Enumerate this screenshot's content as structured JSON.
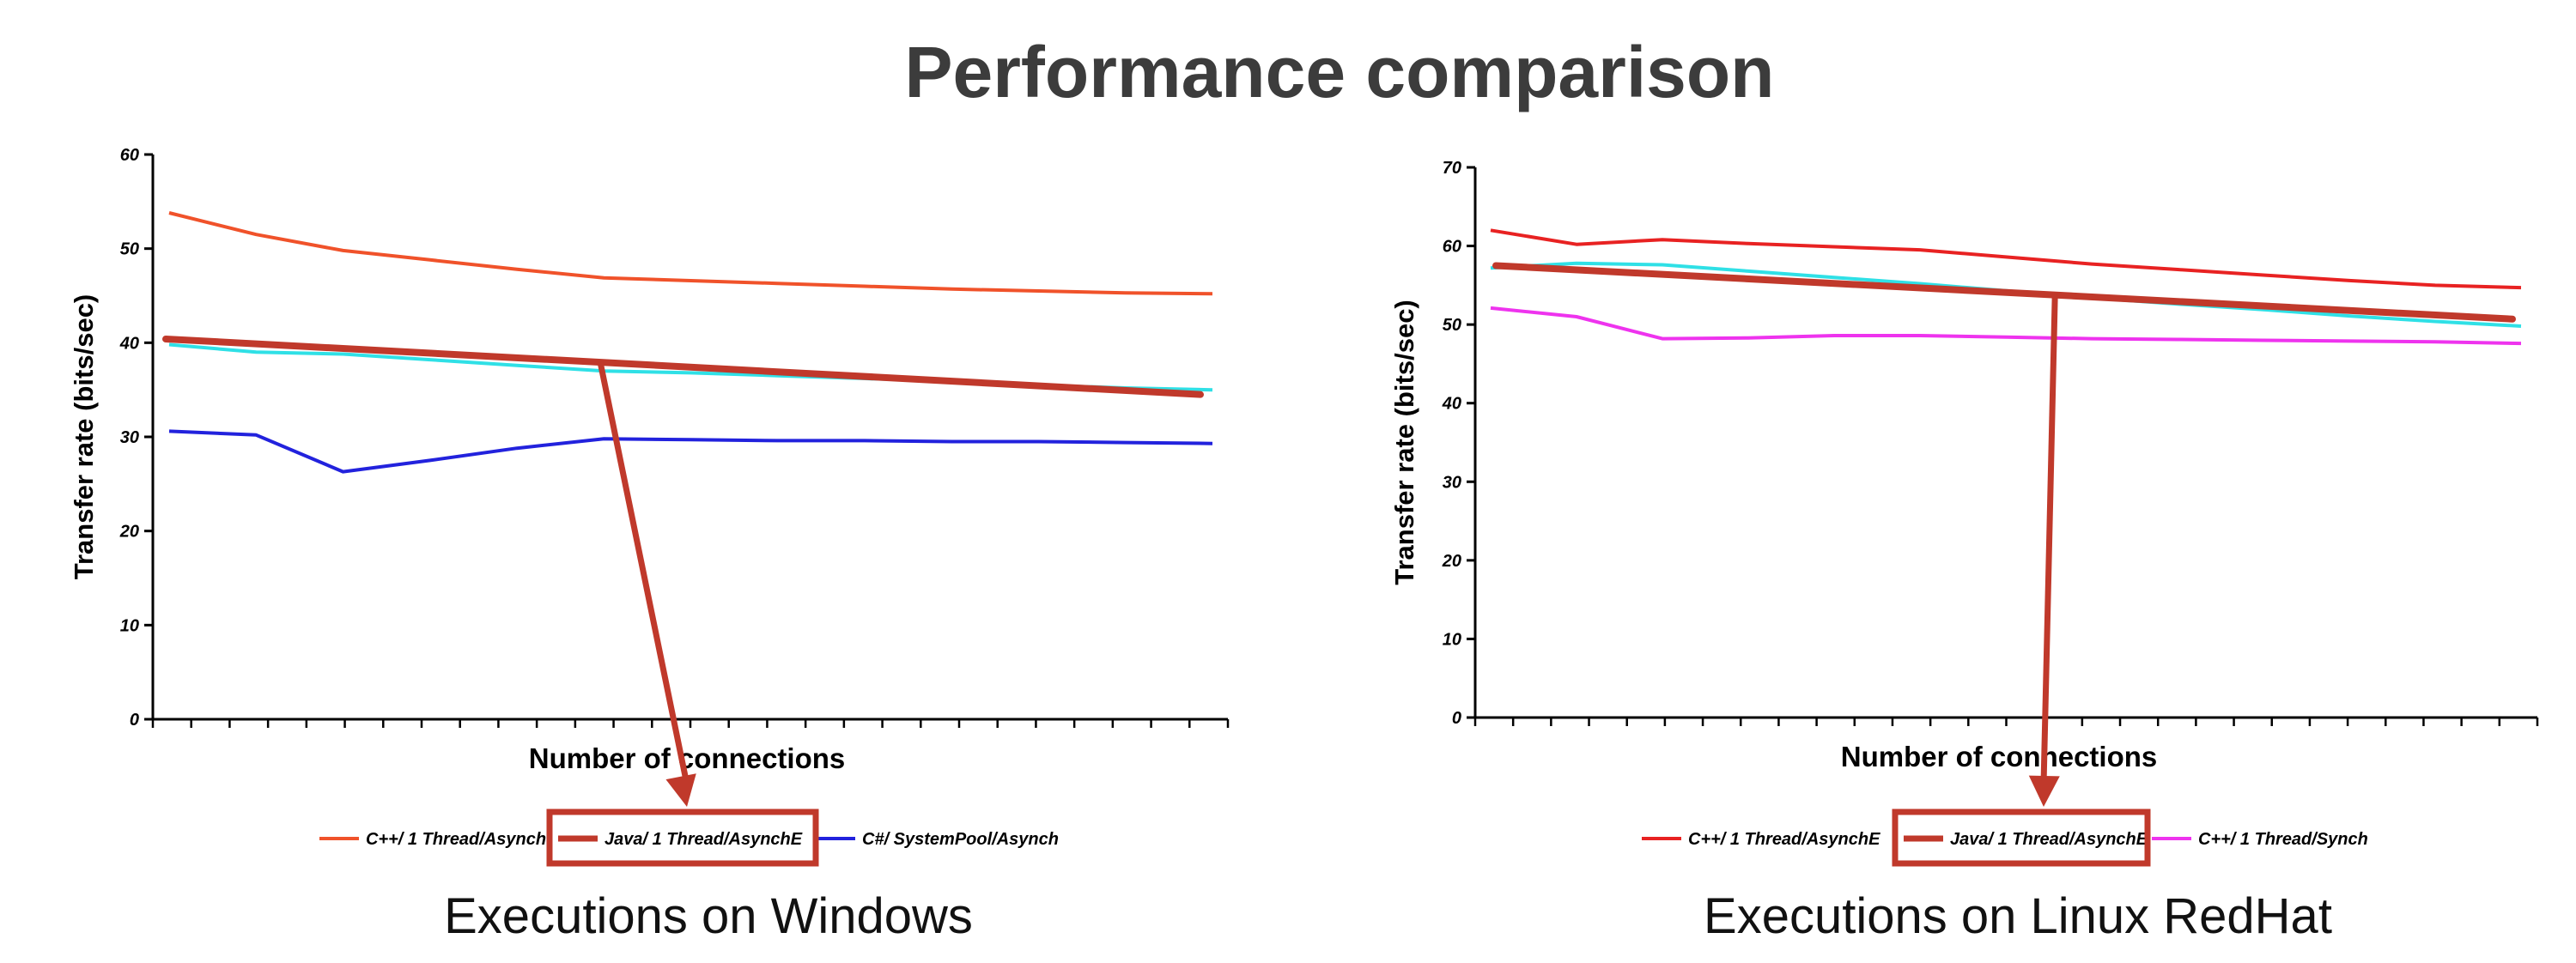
{
  "title": "Performance comparison",
  "captions": [
    "Executions on Windows",
    "Executions on Linux RedHat"
  ],
  "colors": {
    "highlight": "#c0392b",
    "title": "#3c3c3c"
  },
  "chart_data": [
    {
      "type": "line",
      "ylabel": "Transfer rate (bits/sec)",
      "xlabel": "Number of connections",
      "ylim": [
        0,
        60
      ],
      "yticks": [
        "0",
        "10",
        "20",
        "30",
        "40",
        "50",
        "60"
      ],
      "x": [
        1,
        2,
        3,
        4,
        5,
        6,
        7,
        8,
        9,
        10,
        11,
        12,
        13
      ],
      "series": [
        {
          "name": "C++/ 1 Thread/Asynch",
          "color": "#f0522a",
          "values": [
            53.8,
            51.5,
            49.8,
            48.8,
            47.8,
            46.9,
            46.6,
            46.3,
            46.0,
            45.7,
            45.5,
            45.3,
            45.2
          ]
        },
        {
          "name": "Java/ 1 Thread/AsynchE",
          "color": "#2fe0e6",
          "values": [
            39.8,
            39.0,
            38.8,
            38.2,
            37.6,
            37.0,
            36.8,
            36.5,
            36.2,
            35.9,
            35.5,
            35.2,
            35.0
          ]
        },
        {
          "name": "C#/ SystemPool/Asynch",
          "color": "#2222dd",
          "values": [
            30.6,
            30.2,
            26.3,
            27.5,
            28.8,
            29.8,
            29.7,
            29.6,
            29.6,
            29.5,
            29.5,
            29.4,
            29.3
          ]
        }
      ]
    },
    {
      "type": "line",
      "ylabel": "Transfer rate (bits/sec)",
      "xlabel": "Number of connections",
      "ylim": [
        0,
        70
      ],
      "yticks": [
        "0",
        "10",
        "20",
        "30",
        "40",
        "50",
        "60",
        "70"
      ],
      "x": [
        1,
        2,
        3,
        4,
        5,
        6,
        7,
        8,
        9,
        10,
        11,
        12,
        13
      ],
      "series": [
        {
          "name": "C++/ 1 Thread/AsynchE",
          "color": "#e82222",
          "values": [
            62.0,
            60.2,
            60.8,
            60.3,
            59.9,
            59.5,
            58.6,
            57.7,
            57.0,
            56.3,
            55.6,
            55.0,
            54.7
          ]
        },
        {
          "name": "Java/ 1 Thread/AsynchE",
          "color": "#2fe0e6",
          "values": [
            57.2,
            57.8,
            57.6,
            56.8,
            56.0,
            55.2,
            54.3,
            53.4,
            52.6,
            51.9,
            51.1,
            50.4,
            49.8
          ]
        },
        {
          "name": "C++/ 1 Thread/Synch",
          "color": "#ee33ee",
          "values": [
            52.1,
            51.0,
            48.2,
            48.3,
            48.6,
            48.6,
            48.4,
            48.2,
            48.1,
            48.0,
            47.9,
            47.8,
            47.6
          ]
        }
      ]
    }
  ]
}
